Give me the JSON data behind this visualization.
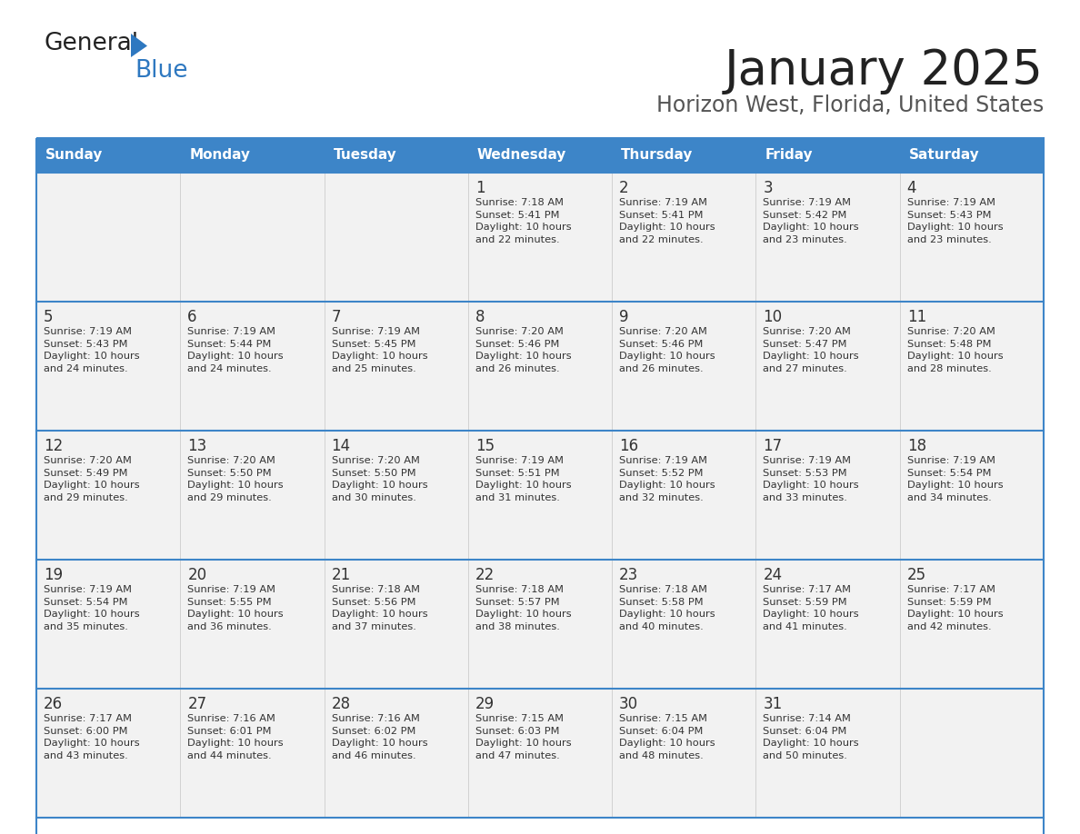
{
  "title": "January 2025",
  "subtitle": "Horizon West, Florida, United States",
  "days_of_week": [
    "Sunday",
    "Monday",
    "Tuesday",
    "Wednesday",
    "Thursday",
    "Friday",
    "Saturday"
  ],
  "header_bg": "#3d85c8",
  "header_text": "#ffffff",
  "cell_bg": "#f2f2f2",
  "border_color": "#3d85c8",
  "text_color": "#333333",
  "title_color": "#222222",
  "subtitle_color": "#555555",
  "logo_color_general": "#222222",
  "logo_color_blue": "#2e78c0",
  "logo_triangle_color": "#2e78c0",
  "calendar_data": [
    [
      "",
      "",
      "",
      "1\nSunrise: 7:18 AM\nSunset: 5:41 PM\nDaylight: 10 hours\nand 22 minutes.",
      "2\nSunrise: 7:19 AM\nSunset: 5:41 PM\nDaylight: 10 hours\nand 22 minutes.",
      "3\nSunrise: 7:19 AM\nSunset: 5:42 PM\nDaylight: 10 hours\nand 23 minutes.",
      "4\nSunrise: 7:19 AM\nSunset: 5:43 PM\nDaylight: 10 hours\nand 23 minutes."
    ],
    [
      "5\nSunrise: 7:19 AM\nSunset: 5:43 PM\nDaylight: 10 hours\nand 24 minutes.",
      "6\nSunrise: 7:19 AM\nSunset: 5:44 PM\nDaylight: 10 hours\nand 24 minutes.",
      "7\nSunrise: 7:19 AM\nSunset: 5:45 PM\nDaylight: 10 hours\nand 25 minutes.",
      "8\nSunrise: 7:20 AM\nSunset: 5:46 PM\nDaylight: 10 hours\nand 26 minutes.",
      "9\nSunrise: 7:20 AM\nSunset: 5:46 PM\nDaylight: 10 hours\nand 26 minutes.",
      "10\nSunrise: 7:20 AM\nSunset: 5:47 PM\nDaylight: 10 hours\nand 27 minutes.",
      "11\nSunrise: 7:20 AM\nSunset: 5:48 PM\nDaylight: 10 hours\nand 28 minutes."
    ],
    [
      "12\nSunrise: 7:20 AM\nSunset: 5:49 PM\nDaylight: 10 hours\nand 29 minutes.",
      "13\nSunrise: 7:20 AM\nSunset: 5:50 PM\nDaylight: 10 hours\nand 29 minutes.",
      "14\nSunrise: 7:20 AM\nSunset: 5:50 PM\nDaylight: 10 hours\nand 30 minutes.",
      "15\nSunrise: 7:19 AM\nSunset: 5:51 PM\nDaylight: 10 hours\nand 31 minutes.",
      "16\nSunrise: 7:19 AM\nSunset: 5:52 PM\nDaylight: 10 hours\nand 32 minutes.",
      "17\nSunrise: 7:19 AM\nSunset: 5:53 PM\nDaylight: 10 hours\nand 33 minutes.",
      "18\nSunrise: 7:19 AM\nSunset: 5:54 PM\nDaylight: 10 hours\nand 34 minutes."
    ],
    [
      "19\nSunrise: 7:19 AM\nSunset: 5:54 PM\nDaylight: 10 hours\nand 35 minutes.",
      "20\nSunrise: 7:19 AM\nSunset: 5:55 PM\nDaylight: 10 hours\nand 36 minutes.",
      "21\nSunrise: 7:18 AM\nSunset: 5:56 PM\nDaylight: 10 hours\nand 37 minutes.",
      "22\nSunrise: 7:18 AM\nSunset: 5:57 PM\nDaylight: 10 hours\nand 38 minutes.",
      "23\nSunrise: 7:18 AM\nSunset: 5:58 PM\nDaylight: 10 hours\nand 40 minutes.",
      "24\nSunrise: 7:17 AM\nSunset: 5:59 PM\nDaylight: 10 hours\nand 41 minutes.",
      "25\nSunrise: 7:17 AM\nSunset: 5:59 PM\nDaylight: 10 hours\nand 42 minutes."
    ],
    [
      "26\nSunrise: 7:17 AM\nSunset: 6:00 PM\nDaylight: 10 hours\nand 43 minutes.",
      "27\nSunrise: 7:16 AM\nSunset: 6:01 PM\nDaylight: 10 hours\nand 44 minutes.",
      "28\nSunrise: 7:16 AM\nSunset: 6:02 PM\nDaylight: 10 hours\nand 46 minutes.",
      "29\nSunrise: 7:15 AM\nSunset: 6:03 PM\nDaylight: 10 hours\nand 47 minutes.",
      "30\nSunrise: 7:15 AM\nSunset: 6:04 PM\nDaylight: 10 hours\nand 48 minutes.",
      "31\nSunrise: 7:14 AM\nSunset: 6:04 PM\nDaylight: 10 hours\nand 50 minutes.",
      ""
    ]
  ]
}
